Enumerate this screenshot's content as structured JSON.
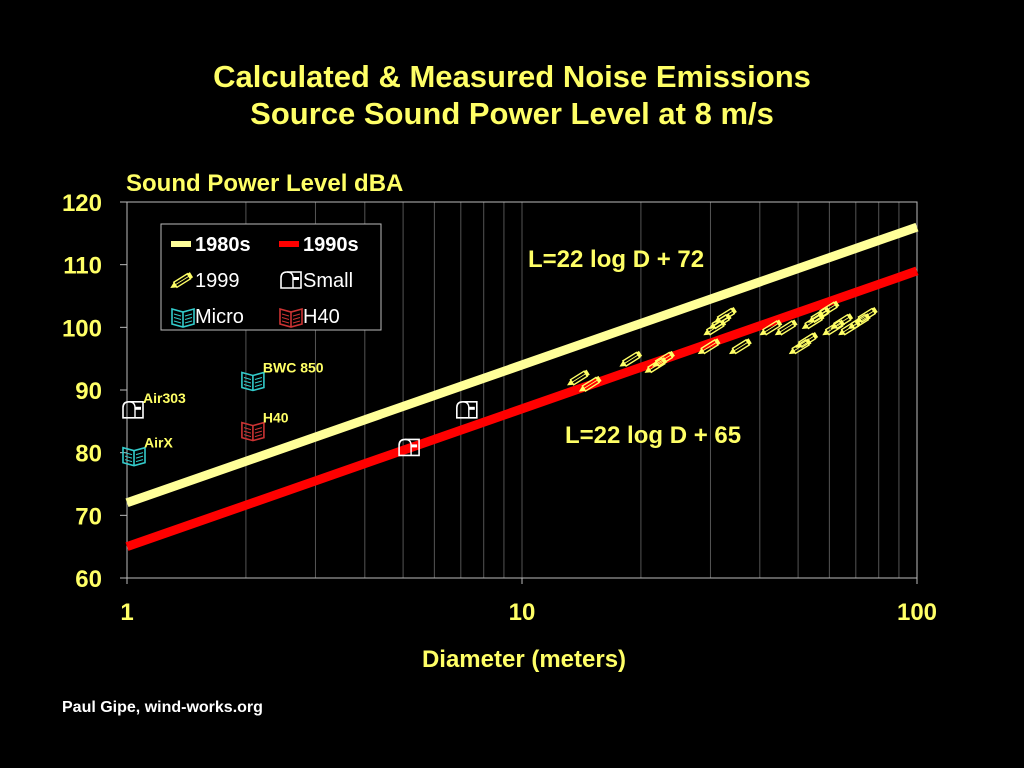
{
  "page": {
    "title_line1": "Calculated & Measured Noise Emissions",
    "title_line2": "Source Sound Power Level at 8 m/s",
    "footer": "Paul Gipe, wind-works.org"
  },
  "colors": {
    "background": "#000000",
    "title": "#ffff66",
    "line_1980s": "#ffff99",
    "line_1990s": "#ff0000",
    "micro_icon": "#33cccc",
    "h40_icon": "#cc3333",
    "small_icon": "#ffffff",
    "pencil_icon": "#ffff66",
    "gridline": "#555555"
  },
  "chart_data": {
    "type": "scatter",
    "title": "Calculated & Measured Noise Emissions Source Sound Power Level at 8 m/s",
    "xlabel": "Diameter (meters)",
    "ylabel": "Sound Power Level  dBA",
    "xscale": "log",
    "xlim": [
      1,
      100
    ],
    "ylim": [
      60,
      120
    ],
    "xticks": [
      "1",
      "10",
      "100"
    ],
    "yticks": [
      "60",
      "70",
      "80",
      "90",
      "100",
      "110",
      "120"
    ],
    "grid": "vertical minor gridlines",
    "legend": {
      "placement": "top-left",
      "entries": [
        {
          "name": "1980s",
          "icon": "line-icon",
          "color": "#ffff99"
        },
        {
          "name": "1990s",
          "icon": "line-icon",
          "color": "#ff0000"
        },
        {
          "name": "1999",
          "icon": "pencil-icon"
        },
        {
          "name": "Small",
          "icon": "mailbox-icon"
        },
        {
          "name": "Micro",
          "icon": "book-icon",
          "color": "#33cccc"
        },
        {
          "name": "H40",
          "icon": "book-icon",
          "color": "#cc3333"
        }
      ]
    },
    "lines": [
      {
        "name": "1980s",
        "label": "L=22 log D + 72",
        "slope": 22,
        "intercept": 72,
        "x": [
          1,
          100
        ],
        "y": [
          72,
          116
        ]
      },
      {
        "name": "1990s",
        "label": "L=22 log D + 65",
        "slope": 22,
        "intercept": 65,
        "x": [
          1,
          100
        ],
        "y": [
          65,
          109
        ]
      }
    ],
    "series": [
      {
        "name": "Micro",
        "icon": "book-icon",
        "points": [
          {
            "x": 1.0,
            "y": 80,
            "label": "AirX"
          },
          {
            "x": 2.0,
            "y": 92,
            "label": "BWC 850"
          }
        ]
      },
      {
        "name": "H40",
        "icon": "book-icon",
        "points": [
          {
            "x": 2.0,
            "y": 84,
            "label": "H40"
          }
        ]
      },
      {
        "name": "Small",
        "icon": "mailbox-icon",
        "points": [
          {
            "x": 1.0,
            "y": 87,
            "label": "Air303"
          },
          {
            "x": 5.0,
            "y": 81
          },
          {
            "x": 7.0,
            "y": 87
          }
        ]
      },
      {
        "name": "1999",
        "icon": "pencil-icon",
        "points": [
          {
            "x": 14,
            "y": 92
          },
          {
            "x": 15,
            "y": 91
          },
          {
            "x": 19,
            "y": 95
          },
          {
            "x": 22,
            "y": 94
          },
          {
            "x": 23,
            "y": 95
          },
          {
            "x": 30,
            "y": 97
          },
          {
            "x": 31,
            "y": 100
          },
          {
            "x": 32,
            "y": 101
          },
          {
            "x": 33,
            "y": 102
          },
          {
            "x": 36,
            "y": 97
          },
          {
            "x": 43,
            "y": 100
          },
          {
            "x": 47,
            "y": 100
          },
          {
            "x": 51,
            "y": 97
          },
          {
            "x": 53,
            "y": 98
          },
          {
            "x": 55,
            "y": 101
          },
          {
            "x": 57,
            "y": 102
          },
          {
            "x": 60,
            "y": 103
          },
          {
            "x": 62,
            "y": 100
          },
          {
            "x": 65,
            "y": 101
          },
          {
            "x": 68,
            "y": 100
          },
          {
            "x": 72,
            "y": 101
          },
          {
            "x": 75,
            "y": 102
          }
        ]
      }
    ],
    "annotations": [
      "L=22 log D + 72",
      "L=22 log D + 65"
    ]
  }
}
